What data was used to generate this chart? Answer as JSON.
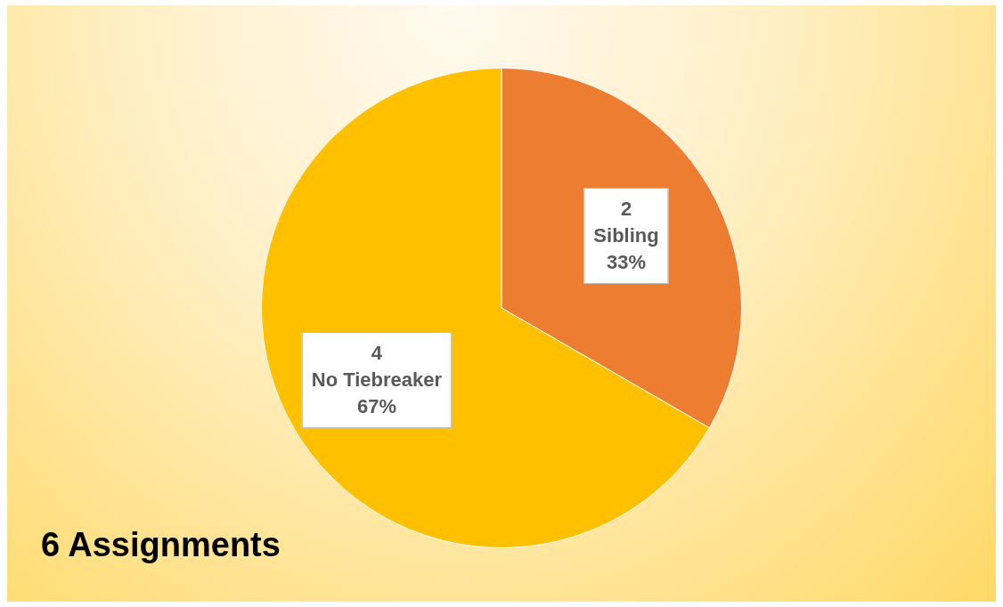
{
  "chart_data": {
    "type": "pie",
    "categories": [
      "Sibling",
      "No Tiebreaker"
    ],
    "values": [
      2,
      4
    ],
    "colors": [
      "#ed7d31",
      "#ffc000"
    ],
    "value_labels": [
      "2",
      "4"
    ],
    "legend": false,
    "annotations": [
      {
        "text": "33%",
        "x": "Sibling"
      },
      {
        "text": "67%",
        "x": "No Tiebreaker"
      },
      "6 Assignments"
    ]
  }
}
